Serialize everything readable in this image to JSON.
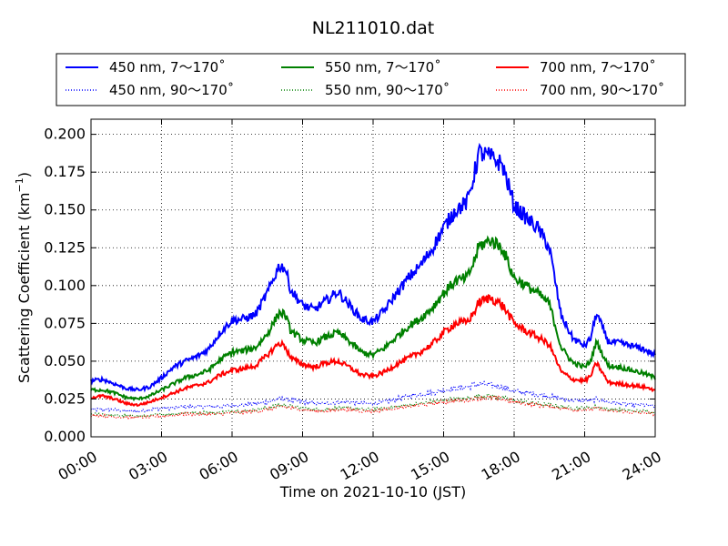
{
  "chart_data": {
    "type": "line",
    "title": "NL211010.dat",
    "xlabel": "Time on 2021-10-10 (JST)",
    "ylabel": "Scattering Coefficient (km",
    "ylabel_sup": "−1",
    "ylabel_close": ")",
    "xlim": [
      0,
      24
    ],
    "ylim": [
      0,
      0.21
    ],
    "grid": true,
    "legend_position": "top (above plot), 3 columns",
    "x_tick_labels": [
      "00:00",
      "03:00",
      "06:00",
      "09:00",
      "12:00",
      "15:00",
      "18:00",
      "21:00",
      "24:00"
    ],
    "x_tick_hours": [
      0,
      3,
      6,
      9,
      12,
      15,
      18,
      21,
      24
    ],
    "y_tick_labels": [
      "0.000",
      "0.025",
      "0.050",
      "0.075",
      "0.100",
      "0.125",
      "0.150",
      "0.175",
      "0.200"
    ],
    "y_tick_values": [
      0,
      0.025,
      0.05,
      0.075,
      0.1,
      0.125,
      0.15,
      0.175,
      0.2
    ],
    "x": [
      0,
      0.5,
      1,
      1.5,
      2,
      2.5,
      3,
      3.5,
      4,
      4.5,
      5,
      5.5,
      6,
      6.5,
      7,
      7.5,
      8,
      8.25,
      8.5,
      9,
      9.5,
      10,
      10.5,
      11,
      11.5,
      12,
      12.5,
      13,
      13.5,
      14,
      14.5,
      15,
      15.5,
      16,
      16.25,
      16.5,
      17,
      17.5,
      18,
      18.5,
      19,
      19.5,
      20,
      20.5,
      21,
      21.25,
      21.5,
      22,
      22.5,
      23,
      23.5,
      24
    ],
    "series": [
      {
        "name": "450 nm, 7～170˚",
        "color": "#0000ff",
        "style": "solid",
        "values": [
          0.037,
          0.038,
          0.035,
          0.032,
          0.031,
          0.033,
          0.039,
          0.046,
          0.05,
          0.053,
          0.058,
          0.069,
          0.077,
          0.078,
          0.081,
          0.095,
          0.113,
          0.112,
          0.097,
          0.087,
          0.084,
          0.09,
          0.096,
          0.087,
          0.078,
          0.076,
          0.084,
          0.095,
          0.105,
          0.113,
          0.124,
          0.138,
          0.15,
          0.155,
          0.17,
          0.188,
          0.185,
          0.18,
          0.153,
          0.145,
          0.138,
          0.125,
          0.08,
          0.065,
          0.06,
          0.065,
          0.082,
          0.063,
          0.062,
          0.06,
          0.058,
          0.054
        ]
      },
      {
        "name": "550 nm, 7～170˚",
        "color": "#008000",
        "style": "solid",
        "values": [
          0.031,
          0.031,
          0.029,
          0.026,
          0.025,
          0.027,
          0.031,
          0.035,
          0.039,
          0.041,
          0.044,
          0.051,
          0.056,
          0.057,
          0.059,
          0.068,
          0.082,
          0.081,
          0.07,
          0.064,
          0.062,
          0.066,
          0.069,
          0.063,
          0.056,
          0.054,
          0.059,
          0.066,
          0.073,
          0.078,
          0.085,
          0.095,
          0.103,
          0.105,
          0.114,
          0.126,
          0.13,
          0.125,
          0.105,
          0.1,
          0.095,
          0.088,
          0.059,
          0.049,
          0.046,
          0.05,
          0.063,
          0.047,
          0.046,
          0.044,
          0.042,
          0.039
        ]
      },
      {
        "name": "700 nm, 7～170˚",
        "color": "#ff0000",
        "style": "solid",
        "values": [
          0.026,
          0.027,
          0.025,
          0.022,
          0.021,
          0.023,
          0.026,
          0.029,
          0.032,
          0.034,
          0.036,
          0.041,
          0.044,
          0.045,
          0.047,
          0.054,
          0.062,
          0.06,
          0.052,
          0.048,
          0.046,
          0.049,
          0.05,
          0.046,
          0.041,
          0.04,
          0.043,
          0.048,
          0.052,
          0.056,
          0.061,
          0.069,
          0.075,
          0.076,
          0.081,
          0.089,
          0.092,
          0.087,
          0.075,
          0.07,
          0.066,
          0.061,
          0.043,
          0.038,
          0.037,
          0.04,
          0.049,
          0.036,
          0.035,
          0.034,
          0.033,
          0.031
        ]
      },
      {
        "name": "450 nm, 90～170˚",
        "color": "#0000ff",
        "style": "dotted",
        "values": [
          0.018,
          0.018,
          0.018,
          0.017,
          0.017,
          0.018,
          0.019,
          0.019,
          0.02,
          0.02,
          0.02,
          0.02,
          0.021,
          0.021,
          0.022,
          0.023,
          0.025,
          0.025,
          0.024,
          0.023,
          0.022,
          0.022,
          0.023,
          0.023,
          0.022,
          0.022,
          0.023,
          0.025,
          0.027,
          0.028,
          0.029,
          0.031,
          0.032,
          0.033,
          0.034,
          0.035,
          0.034,
          0.033,
          0.03,
          0.029,
          0.028,
          0.027,
          0.025,
          0.024,
          0.024,
          0.024,
          0.025,
          0.023,
          0.022,
          0.021,
          0.021,
          0.02
        ]
      },
      {
        "name": "550 nm, 90～170˚",
        "color": "#008000",
        "style": "dotted",
        "values": [
          0.015,
          0.015,
          0.014,
          0.014,
          0.014,
          0.014,
          0.015,
          0.015,
          0.016,
          0.016,
          0.016,
          0.016,
          0.017,
          0.017,
          0.018,
          0.019,
          0.021,
          0.021,
          0.02,
          0.019,
          0.018,
          0.018,
          0.019,
          0.019,
          0.018,
          0.018,
          0.019,
          0.02,
          0.021,
          0.022,
          0.023,
          0.024,
          0.025,
          0.025,
          0.026,
          0.027,
          0.027,
          0.026,
          0.024,
          0.023,
          0.022,
          0.021,
          0.02,
          0.019,
          0.019,
          0.019,
          0.02,
          0.018,
          0.018,
          0.017,
          0.017,
          0.016
        ]
      },
      {
        "name": "700 nm, 90～170˚",
        "color": "#ff0000",
        "style": "dotted",
        "values": [
          0.014,
          0.014,
          0.013,
          0.013,
          0.013,
          0.013,
          0.014,
          0.014,
          0.015,
          0.015,
          0.015,
          0.015,
          0.016,
          0.016,
          0.017,
          0.018,
          0.02,
          0.02,
          0.019,
          0.018,
          0.017,
          0.017,
          0.018,
          0.018,
          0.017,
          0.017,
          0.018,
          0.019,
          0.02,
          0.021,
          0.022,
          0.023,
          0.024,
          0.024,
          0.025,
          0.026,
          0.026,
          0.025,
          0.023,
          0.022,
          0.021,
          0.02,
          0.019,
          0.018,
          0.018,
          0.018,
          0.019,
          0.017,
          0.017,
          0.016,
          0.016,
          0.015
        ]
      }
    ]
  }
}
